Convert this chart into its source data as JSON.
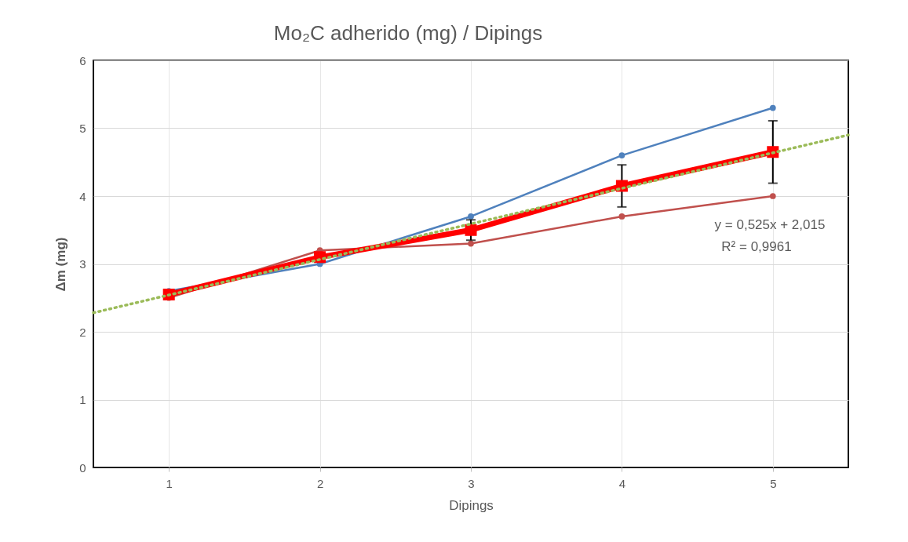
{
  "chart_data": {
    "type": "line",
    "title": "Mo₂C adherido (mg) / Dipings",
    "xlabel": "Dipings",
    "ylabel": "Δm (mg)",
    "x": [
      1,
      2,
      3,
      4,
      5
    ],
    "series": [
      {
        "color": "#4f81bd",
        "marker": "circle",
        "values": [
          2.6,
          3.0,
          3.7,
          4.6,
          5.3
        ]
      },
      {
        "color": "#c0504d",
        "marker": "circle",
        "values": [
          2.5,
          3.2,
          3.3,
          3.7,
          4.0
        ]
      },
      {
        "color": "#ff0000",
        "marker": "square",
        "values": [
          2.55,
          3.1,
          3.5,
          4.15,
          4.65
        ],
        "errors": [
          null,
          null,
          0.15,
          0.31,
          0.46
        ]
      },
      {
        "type": "line",
        "color": "#9bbb59",
        "line_style": "dotted",
        "marker": "none",
        "x": [
          0.5,
          5.5
        ],
        "values": [
          2.28,
          4.9
        ]
      }
    ],
    "annotations": [
      "y = 0,525x + 2,015",
      "R² = 0,9961"
    ],
    "xlim": [
      0.5,
      5.5
    ],
    "xticks": [
      1,
      2,
      3,
      4,
      5
    ],
    "ylim": [
      0,
      6
    ],
    "yticks": [
      0,
      1,
      2,
      3,
      4,
      5,
      6
    ],
    "grid": true
  }
}
